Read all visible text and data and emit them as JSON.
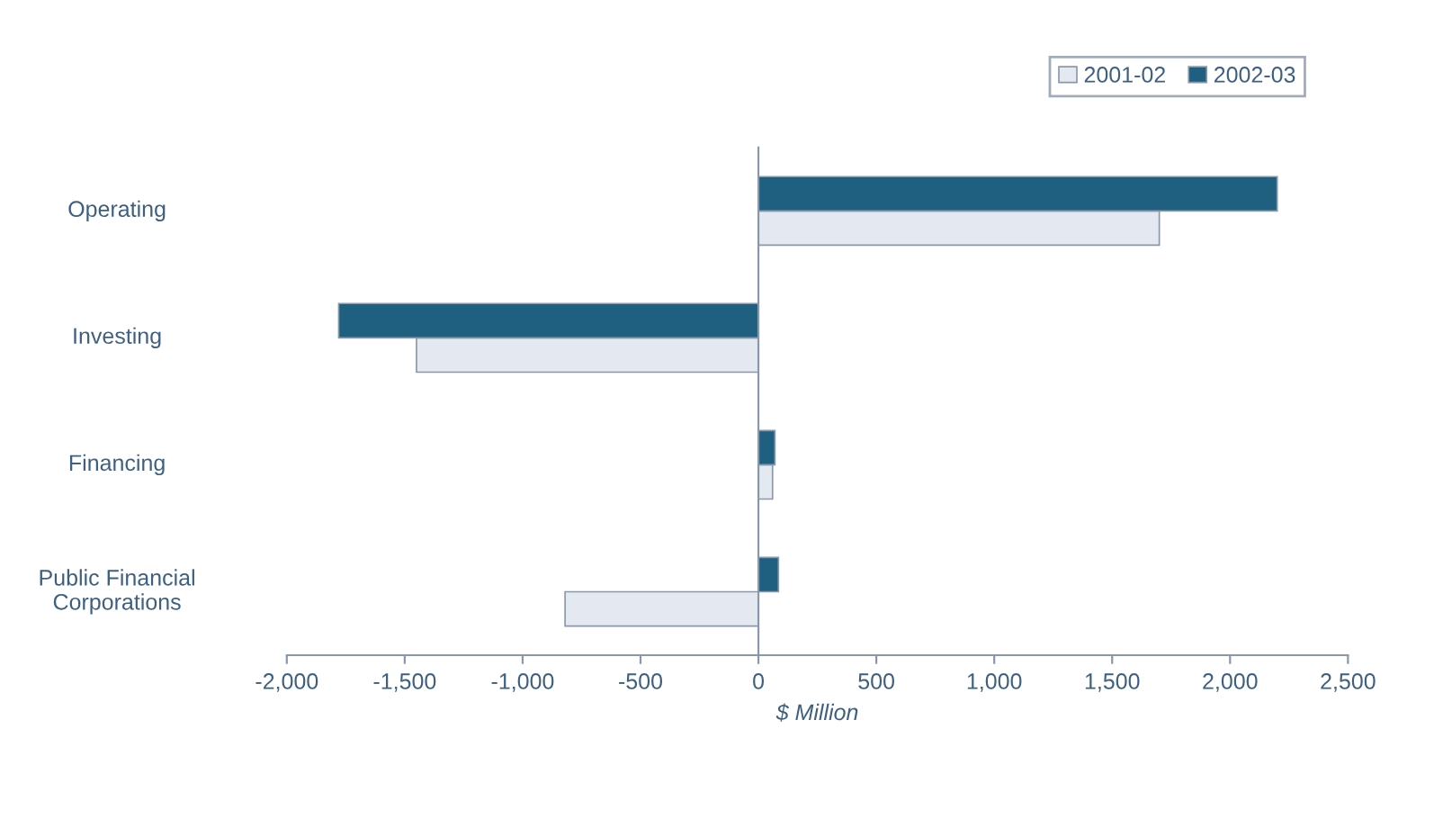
{
  "chart_data": {
    "type": "bar",
    "orientation": "horizontal",
    "categories": [
      "Operating",
      "Investing",
      "Financing",
      "Public Financial\nCorporations"
    ],
    "series": [
      {
        "name": "2001-02",
        "color": "#e4e9f1",
        "values": [
          1700,
          -1450,
          60,
          -820
        ]
      },
      {
        "name": "2002-03",
        "color": "#1f6080",
        "values": [
          2200,
          -1780,
          70,
          85
        ]
      }
    ],
    "xlabel": "$ Million",
    "xlim": [
      -2000,
      2500
    ],
    "xticks": [
      {
        "value": -2000,
        "label": "-2,000"
      },
      {
        "value": -1500,
        "label": "-1,500"
      },
      {
        "value": -1000,
        "label": "-1,000"
      },
      {
        "value": -500,
        "label": "-500"
      },
      0,
      500,
      {
        "value": 1000,
        "label": "1,000"
      },
      {
        "value": 1500,
        "label": "1,500"
      },
      {
        "value": 2000,
        "label": "2,000"
      },
      {
        "value": 2500,
        "label": "2,500"
      }
    ],
    "legend": "top right"
  }
}
